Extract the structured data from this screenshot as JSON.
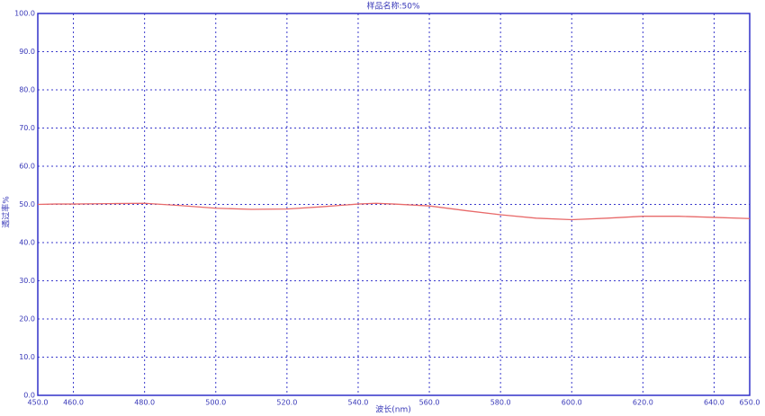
{
  "chart_data": {
    "type": "line",
    "title": "样品名称:50%",
    "xlabel": "波长(nm)",
    "ylabel": "透过率%",
    "x": [
      450,
      455,
      460,
      470,
      480,
      490,
      500,
      510,
      520,
      530,
      540,
      545,
      550,
      560,
      570,
      580,
      590,
      600,
      610,
      620,
      630,
      640,
      650
    ],
    "values": [
      50.0,
      50.1,
      50.1,
      50.2,
      50.3,
      49.7,
      49.0,
      48.7,
      48.8,
      49.4,
      50.1,
      50.3,
      50.1,
      49.6,
      48.4,
      47.3,
      46.4,
      46.0,
      46.4,
      46.9,
      46.9,
      46.6,
      46.3
    ],
    "color": "#e86a6a",
    "xlim": [
      450,
      650
    ],
    "xticks": [
      {
        "value": 450,
        "label": "450.0"
      },
      {
        "value": 460,
        "label": "460.0"
      },
      {
        "value": 480,
        "label": "480.0"
      },
      {
        "value": 500,
        "label": "500.0"
      },
      {
        "value": 520,
        "label": "520.0"
      },
      {
        "value": 540,
        "label": "540.0"
      },
      {
        "value": 560,
        "label": "560.0"
      },
      {
        "value": 580,
        "label": "580.0"
      },
      {
        "value": 600,
        "label": "600.0"
      },
      {
        "value": 620,
        "label": "620.0"
      },
      {
        "value": 640,
        "label": "640.0"
      },
      {
        "value": 650,
        "label": "650.0"
      }
    ],
    "ylim": [
      0,
      100
    ],
    "yticks": [
      {
        "value": 0,
        "label": "0.0"
      },
      {
        "value": 10,
        "label": "10.0"
      },
      {
        "value": 20,
        "label": "20.0"
      },
      {
        "value": 30,
        "label": "30.0"
      },
      {
        "value": 40,
        "label": "40.0"
      },
      {
        "value": 50,
        "label": "50.0"
      },
      {
        "value": 60,
        "label": "60.0"
      },
      {
        "value": 70,
        "label": "70.0"
      },
      {
        "value": 80,
        "label": "80.0"
      },
      {
        "value": 90,
        "label": "90.0"
      },
      {
        "value": 100,
        "label": "100.0"
      }
    ],
    "grid": true
  }
}
